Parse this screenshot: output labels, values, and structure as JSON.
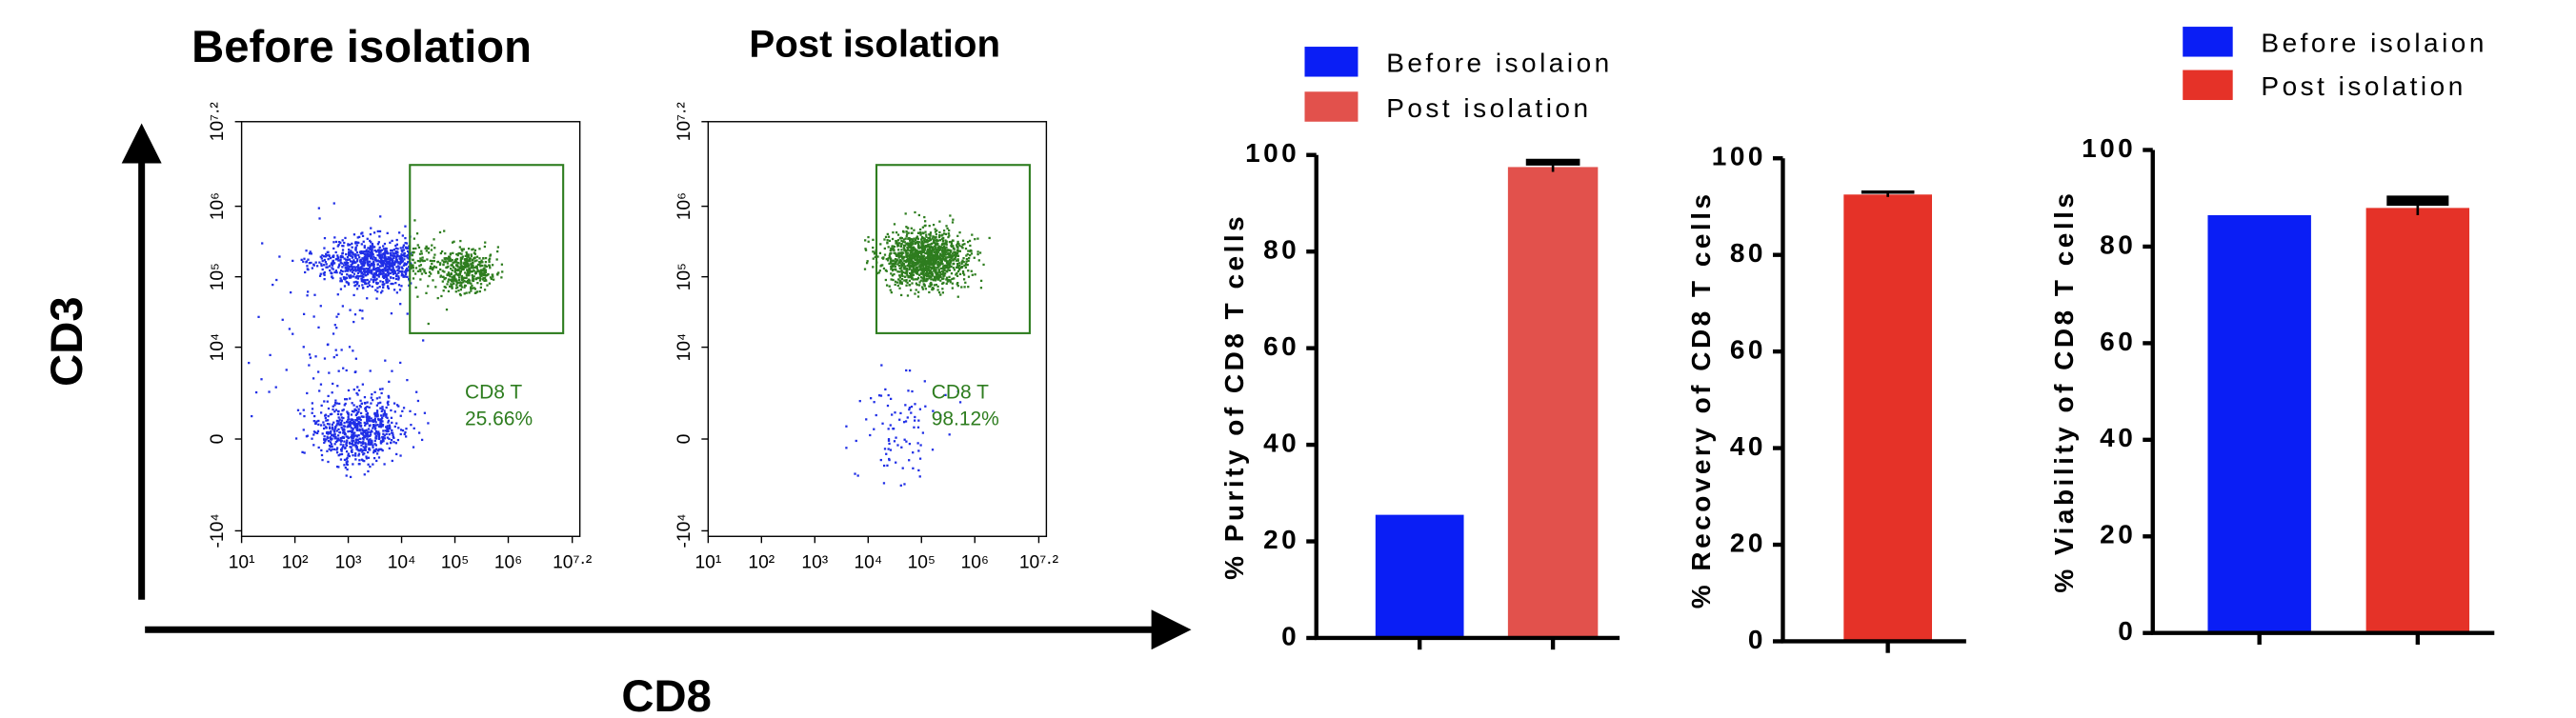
{
  "figure": {
    "y_label": "CD3",
    "x_label": "CD8"
  },
  "chart_data": [
    {
      "type": "flow",
      "title": "Before isolation",
      "annotation": "CD8 T",
      "annotation_value": "25.66%",
      "xscale": "log",
      "yscale": "asinh",
      "xlim": [
        10,
        22000000
      ],
      "ylim": [
        -12000,
        15848932
      ],
      "xticks": [
        {
          "value": 10,
          "label": "10¹"
        },
        {
          "value": 100,
          "label": "10²"
        },
        {
          "value": 1000,
          "label": "10³"
        },
        {
          "value": 10000,
          "label": "10⁴"
        },
        {
          "value": 100000,
          "label": "10⁵"
        },
        {
          "value": 1000000,
          "label": "10⁶"
        },
        {
          "value": 15848932,
          "label": "10⁷·²"
        }
      ],
      "yticks": [
        {
          "value": -10000,
          "label": "-10⁴"
        },
        0,
        {
          "value": 10000,
          "label": "10⁴"
        },
        {
          "value": 100000,
          "label": "10⁵"
        },
        {
          "value": 1000000,
          "label": "10⁶"
        },
        {
          "value": 15848932,
          "label": "10⁷·²"
        }
      ]
    },
    {
      "type": "flow",
      "title": "Post isolation",
      "annotation": "CD8 T",
      "annotation_value": "98.12%",
      "xscale": "log",
      "yscale": "asinh",
      "xlim": [
        10,
        22000000
      ],
      "ylim": [
        -12000,
        15848932
      ],
      "xticks": [
        {
          "value": 10,
          "label": "10¹"
        },
        {
          "value": 100,
          "label": "10²"
        },
        {
          "value": 1000,
          "label": "10³"
        },
        {
          "value": 10000,
          "label": "10⁴"
        },
        {
          "value": 100000,
          "label": "10⁵"
        },
        {
          "value": 1000000,
          "label": "10⁶"
        },
        {
          "value": 15848932,
          "label": "10⁷·²"
        }
      ],
      "yticks": [
        {
          "value": -10000,
          "label": "-10⁴"
        },
        0,
        {
          "value": 10000,
          "label": "10⁴"
        },
        {
          "value": 100000,
          "label": "10⁵"
        },
        {
          "value": 1000000,
          "label": "10⁶"
        },
        {
          "value": 15848932,
          "label": "10⁷·²"
        }
      ]
    },
    {
      "type": "bar",
      "y_label": "% Purity of CD8 T cells",
      "categories": [
        null,
        null
      ],
      "ylim": [
        0,
        100
      ],
      "yticks": [
        0,
        20,
        40,
        60,
        80,
        100
      ],
      "legend": true,
      "series": [
        {
          "name": "Before isolaion",
          "color": "#0a1ef5",
          "values": [
            25.5,
            null
          ]
        },
        {
          "name": "Post isolation",
          "color": "#e2514c",
          "values": [
            null,
            97.5
          ],
          "errors": [
            null,
            1
          ]
        }
      ]
    },
    {
      "type": "bar",
      "y_label": "% Recovery of CD8 T cells",
      "categories": [
        null
      ],
      "ylim": [
        0,
        100
      ],
      "yticks": [
        0,
        20,
        40,
        60,
        80,
        100
      ],
      "legend": false,
      "series": [
        {
          "color": "#e53228",
          "values": [
            92.5
          ],
          "errors": [
            0.5
          ]
        }
      ]
    },
    {
      "type": "bar",
      "y_label": "% Viability of CD8 T cells",
      "categories": [
        null,
        null
      ],
      "ylim": [
        0,
        100
      ],
      "yticks": [
        0,
        20,
        40,
        60,
        80,
        100
      ],
      "legend": true,
      "series": [
        {
          "name": "Before isolaion",
          "color": "#0a1ef5",
          "values": [
            86.5,
            null
          ]
        },
        {
          "name": "Post isolation",
          "color": "#e53228",
          "values": [
            null,
            88
          ],
          "errors": [
            null,
            1.5
          ]
        }
      ]
    }
  ]
}
